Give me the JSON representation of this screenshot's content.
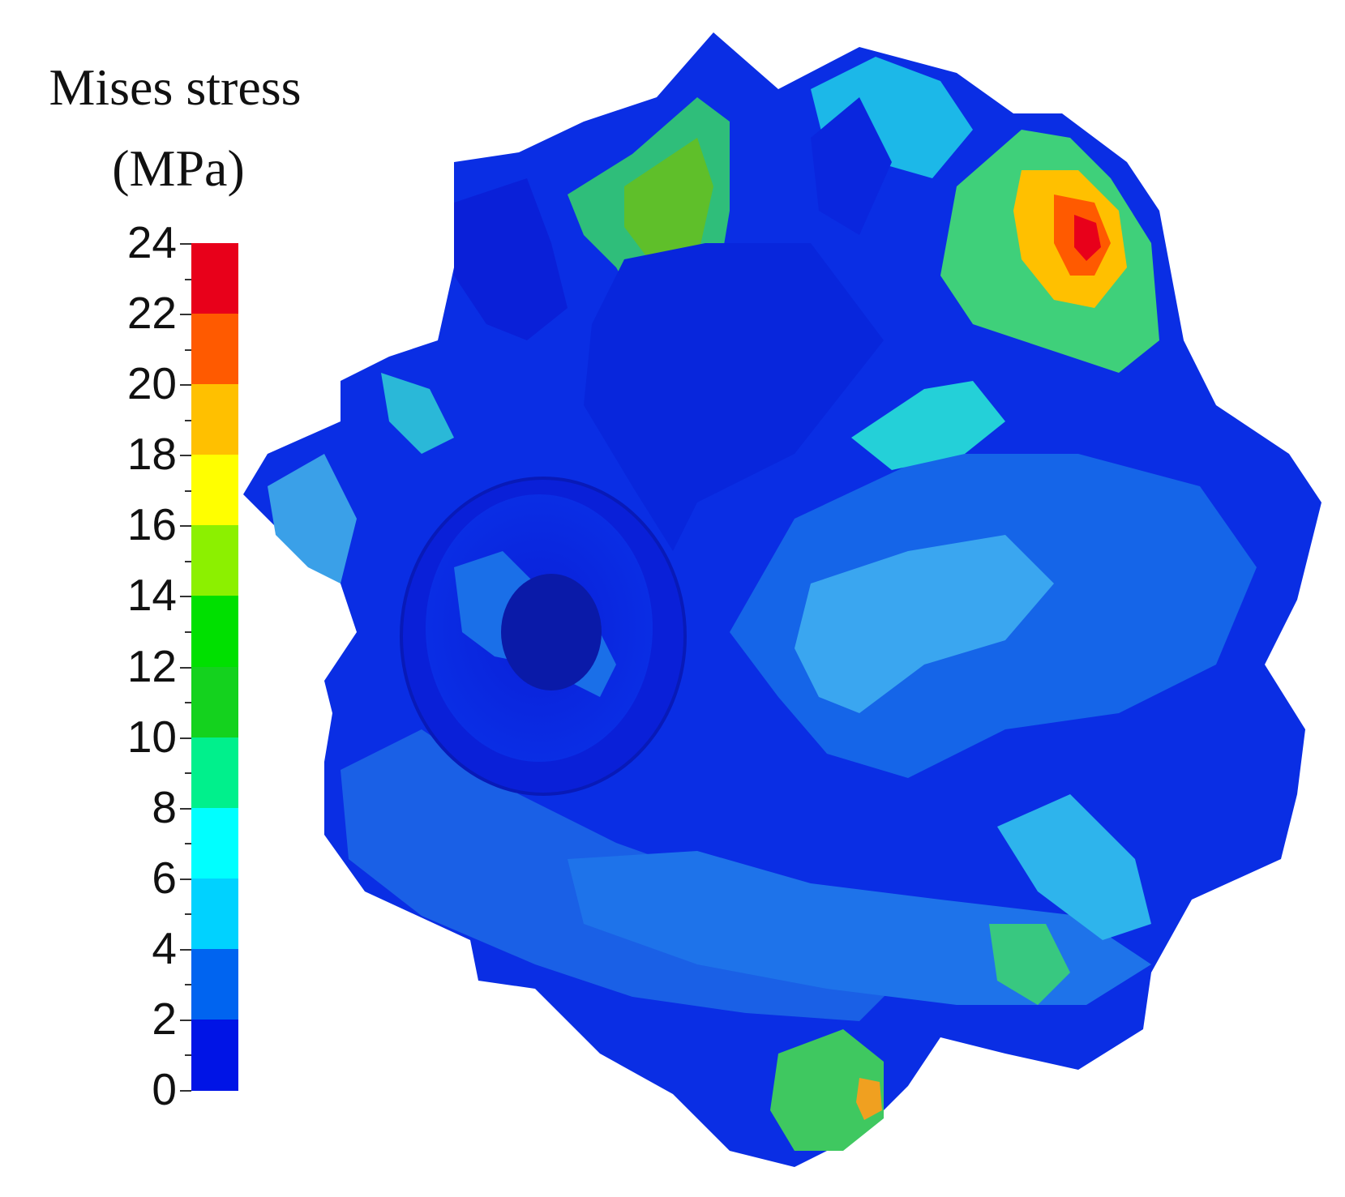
{
  "legend": {
    "title_line1": "Mises stress",
    "title_line2": "(MPa)",
    "ticks": [
      "24",
      "22",
      "20",
      "18",
      "16",
      "14",
      "12",
      "10",
      "8",
      "6",
      "4",
      "2",
      "0"
    ],
    "colors": [
      "#e8001a",
      "#ff5a00",
      "#ffc000",
      "#ffff00",
      "#8cf000",
      "#00e000",
      "#14d21e",
      "#00f08c",
      "#00ffff",
      "#00d2ff",
      "#0064f0",
      "#0014e6"
    ],
    "band_colors_top_to_bottom": [
      "#e8001a",
      "#ff5a00",
      "#ffc000",
      "#ffff00",
      "#8cf000",
      "#00e000",
      "#14d21e",
      "#00f08c",
      "#00ffff",
      "#00d2ff",
      "#0064f0",
      "#0014e6"
    ]
  },
  "model": {
    "name": "impeller-stress-contour",
    "dominant_color": "#0a28e6",
    "mid_color": "#1a6fe8",
    "hotspot_color": "#e8001a"
  }
}
